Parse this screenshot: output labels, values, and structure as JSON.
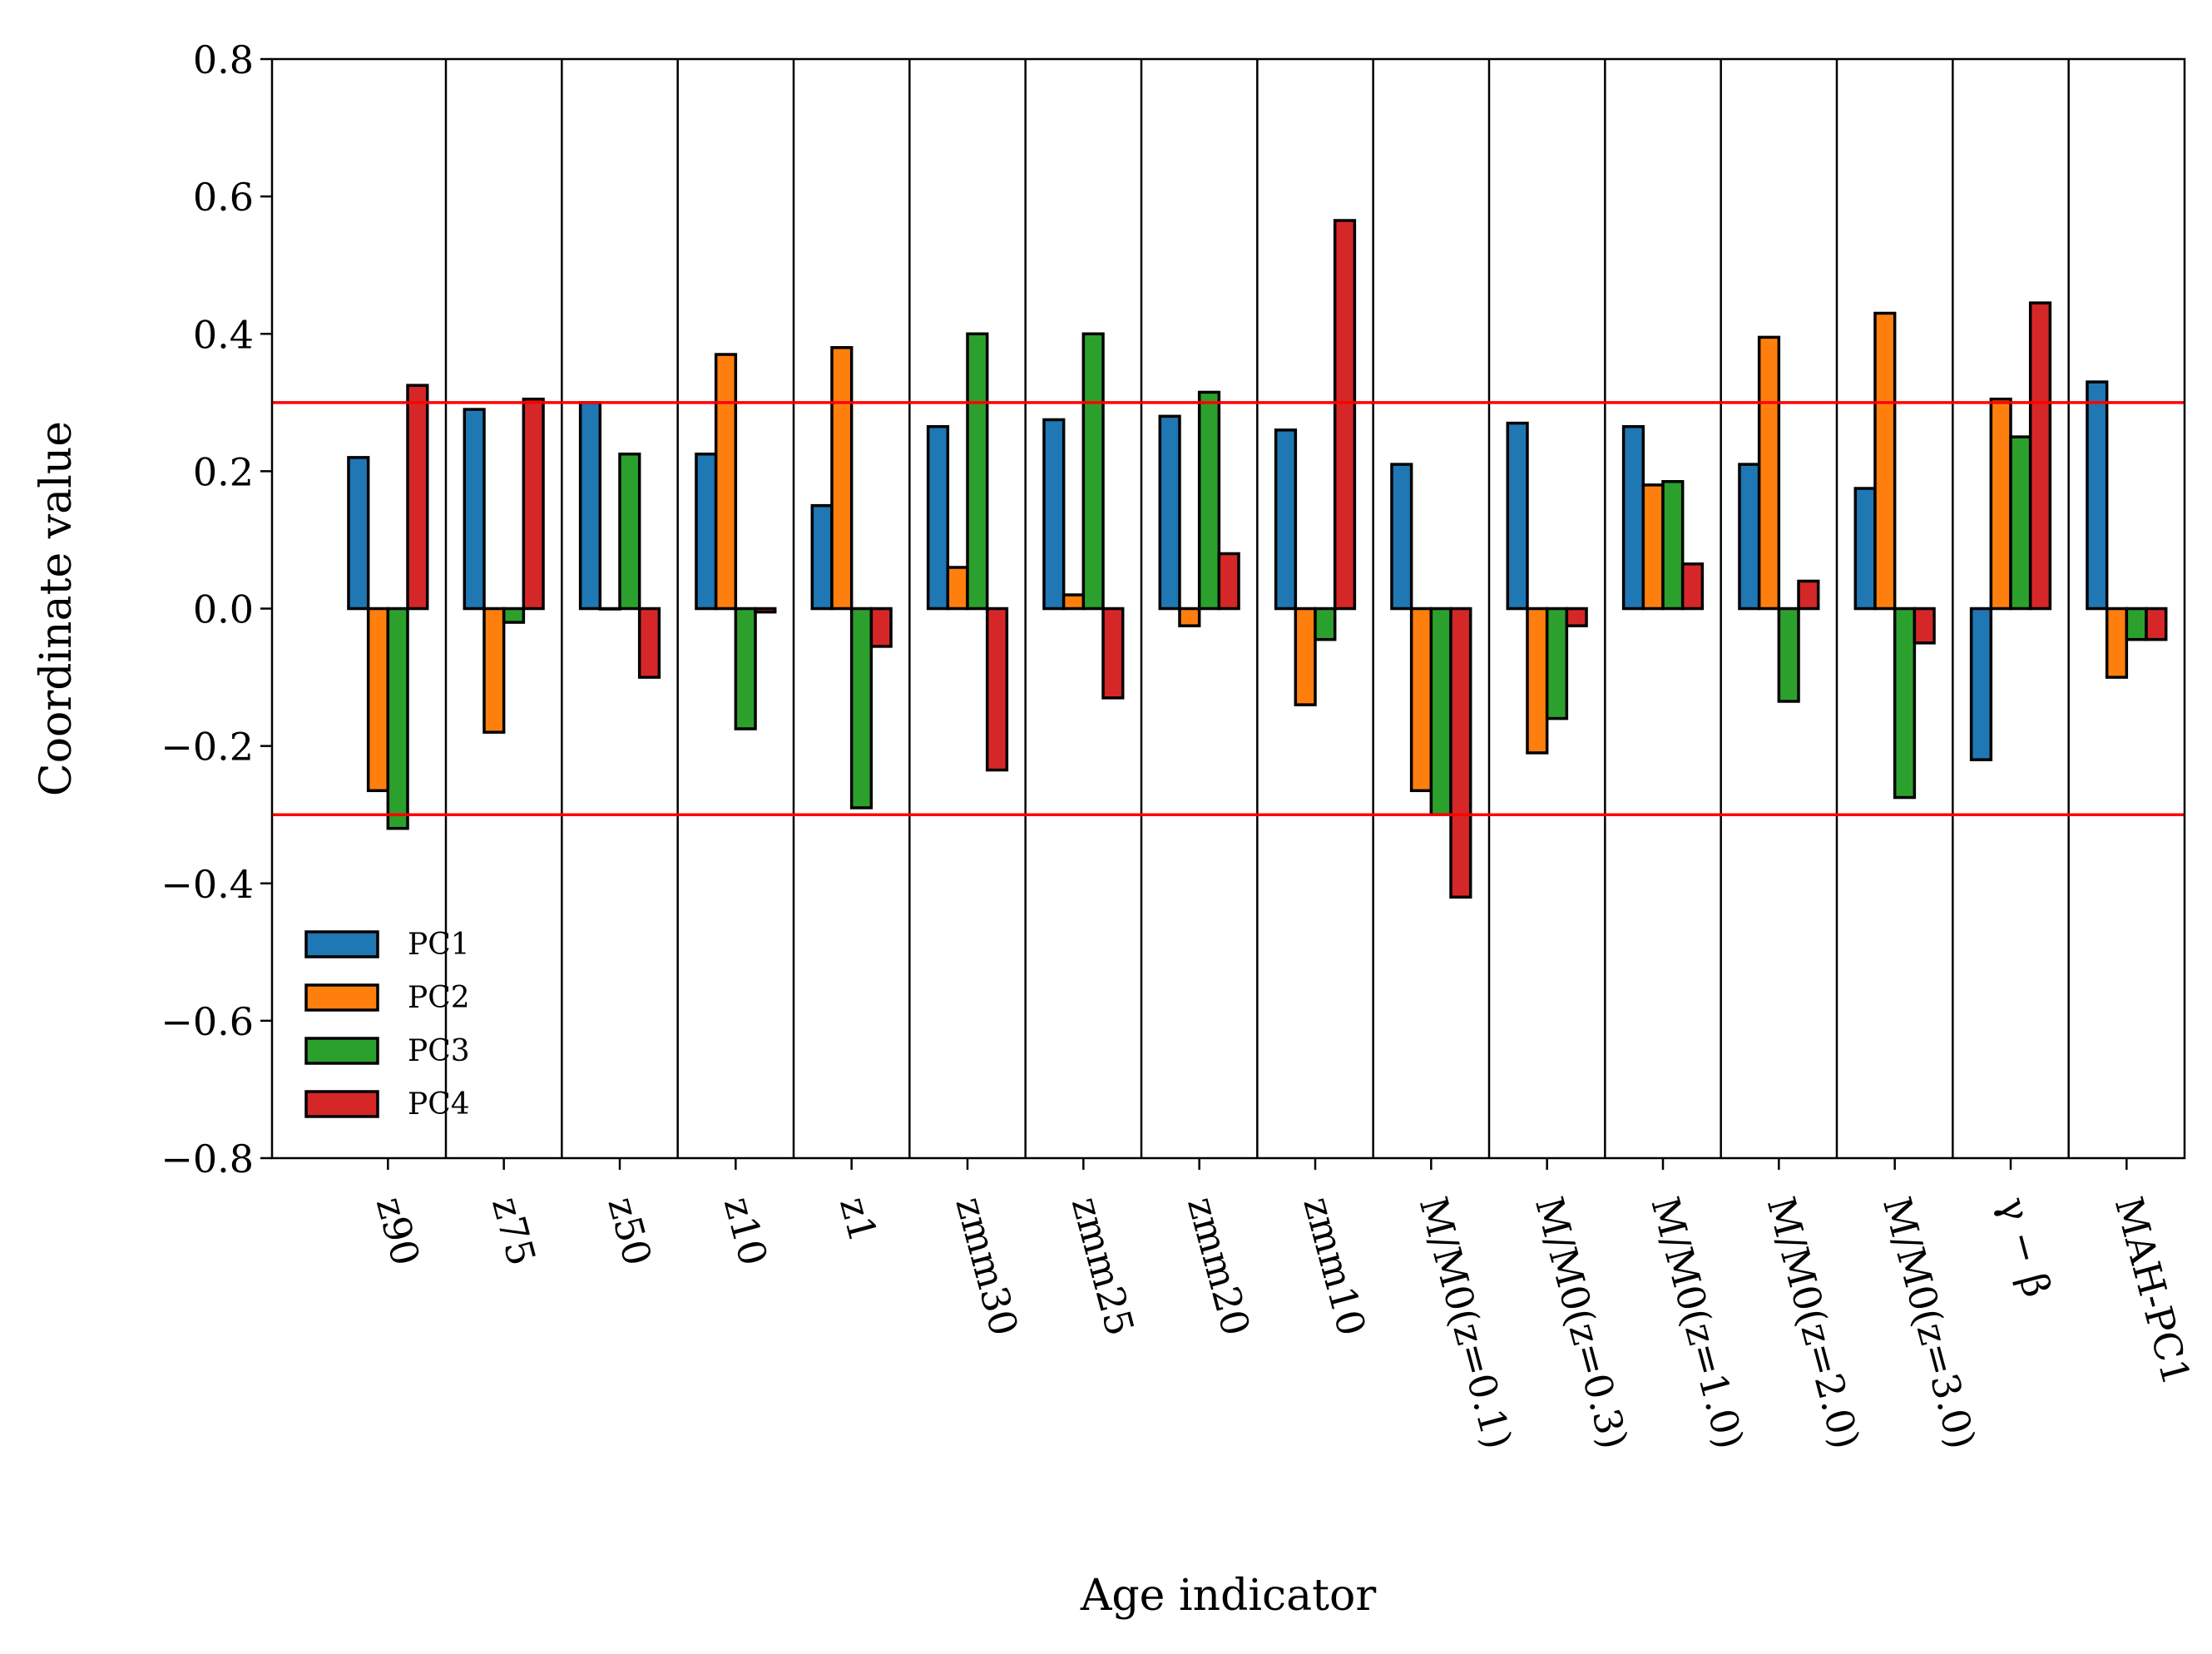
{
  "chart_data": {
    "type": "bar",
    "xlabel": "Age indicator",
    "ylabel": "Coordinate value",
    "ylim": [
      -0.8,
      0.8
    ],
    "yticks": [
      "0.8",
      "0.6",
      "0.4",
      "0.2",
      "0.0",
      "−0.2",
      "−0.4",
      "−0.6",
      "−0.8"
    ],
    "ytick_values": [
      0.8,
      0.6,
      0.4,
      0.2,
      0.0,
      -0.2,
      -0.4,
      -0.6,
      -0.8
    ],
    "categories": [
      "z90",
      "z75",
      "z50",
      "z10",
      "z1",
      "zmm30",
      "zmm25",
      "zmm20",
      "zmm10",
      "M/M0(z=0.1)",
      "M/M0(z=0.3)",
      "M/M0(z=1.0)",
      "M/M0(z=2.0)",
      "M/M0(z=3.0)",
      "γ − β",
      "MAH-PC1"
    ],
    "series": [
      {
        "name": "PC1",
        "color": "#1f77b4",
        "values": [
          0.22,
          0.29,
          0.3,
          0.225,
          0.15,
          0.265,
          0.275,
          0.28,
          0.26,
          0.21,
          0.27,
          0.265,
          0.21,
          0.175,
          -0.22,
          0.33
        ]
      },
      {
        "name": "PC2",
        "color": "#ff7f0e",
        "values": [
          -0.265,
          -0.18,
          0.0,
          0.37,
          0.38,
          0.06,
          0.02,
          -0.025,
          -0.14,
          -0.265,
          -0.21,
          0.18,
          0.395,
          0.43,
          0.305,
          -0.1
        ]
      },
      {
        "name": "PC3",
        "color": "#2ca02c",
        "values": [
          -0.32,
          -0.02,
          0.225,
          -0.175,
          -0.29,
          0.4,
          0.4,
          0.315,
          -0.045,
          -0.3,
          -0.16,
          0.185,
          -0.135,
          -0.275,
          0.25,
          -0.045
        ]
      },
      {
        "name": "PC4",
        "color": "#d62728",
        "values": [
          0.325,
          0.305,
          -0.1,
          -0.005,
          -0.055,
          -0.235,
          -0.13,
          0.08,
          0.565,
          -0.42,
          -0.025,
          0.065,
          0.04,
          -0.05,
          0.445,
          -0.045
        ]
      }
    ],
    "reference_lines": [
      {
        "y": 0.3,
        "color": "#ff0000"
      },
      {
        "y": -0.3,
        "color": "#ff0000"
      }
    ],
    "legend": "lower-left",
    "grid": false
  }
}
